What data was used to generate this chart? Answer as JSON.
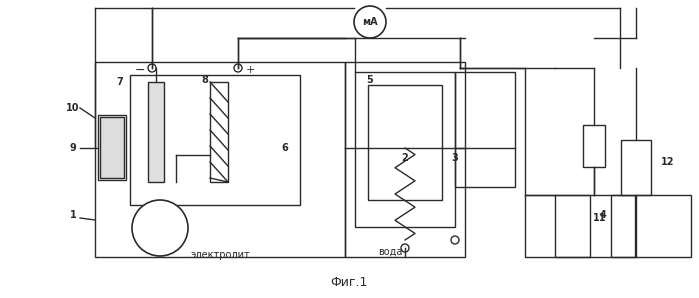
{
  "bg": "#f5f5f5",
  "lc": "#2a2a2a",
  "lw": 1.0,
  "fig_caption": "Фиг.1",
  "text_elektrolit": "электролит",
  "text_voda": "вода",
  "text_minus": "−",
  "text_plus": "+",
  "text_mA": "мА"
}
